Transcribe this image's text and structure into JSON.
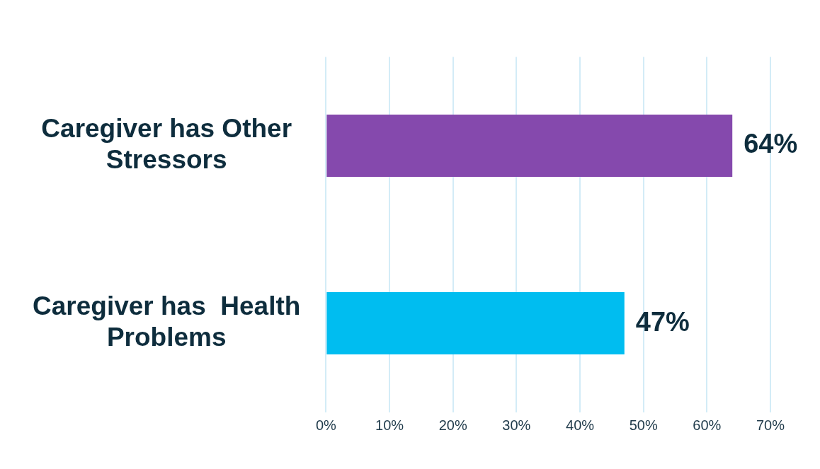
{
  "chart_data": {
    "type": "bar",
    "orientation": "horizontal",
    "categories": [
      "Caregiver has Other Stressors",
      "Caregiver has  Health Problems"
    ],
    "values": [
      64,
      47
    ],
    "colors": [
      "#8549ad",
      "#00bdf0"
    ],
    "value_labels": [
      "64%",
      "47%"
    ],
    "xlim": [
      0,
      70
    ],
    "xticks": [
      {
        "value": 0,
        "label": "0%"
      },
      {
        "value": 10,
        "label": "10%"
      },
      {
        "value": 20,
        "label": "20%"
      },
      {
        "value": 30,
        "label": "30%"
      },
      {
        "value": 40,
        "label": "40%"
      },
      {
        "value": 50,
        "label": "50%"
      },
      {
        "value": 60,
        "label": "60%"
      },
      {
        "value": 70,
        "label": "70%"
      }
    ],
    "grid": "x",
    "legend": false
  }
}
